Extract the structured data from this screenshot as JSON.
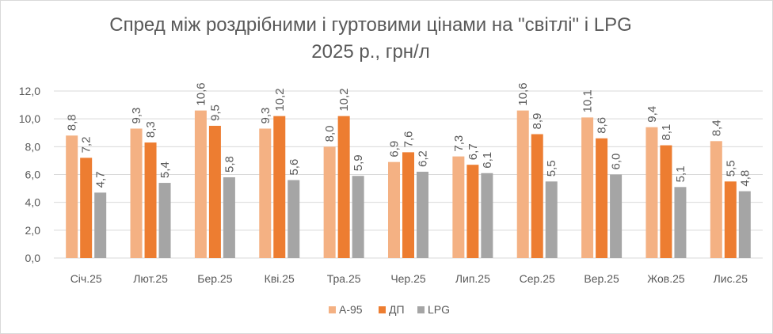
{
  "chart_data": {
    "type": "bar",
    "title_line1": "Спред між роздрібними і гуртовими цінами на \"світлі\" і LPG",
    "title_line2": "2025 р., грн/л",
    "categories": [
      "Січ.25",
      "Лют.25",
      "Бер.25",
      "Кві.25",
      "Тра.25",
      "Чер.25",
      "Лип.25",
      "Сер.25",
      "Вер.25",
      "Жов.25",
      "Лис.25"
    ],
    "series": [
      {
        "name": "А-95",
        "color": "#f4b183",
        "values": [
          8.8,
          9.3,
          10.6,
          9.3,
          8.0,
          6.9,
          7.3,
          10.6,
          10.1,
          9.4,
          8.4
        ]
      },
      {
        "name": "ДП",
        "color": "#ed7d31",
        "values": [
          7.2,
          8.3,
          9.5,
          10.2,
          10.2,
          7.6,
          6.7,
          8.9,
          8.6,
          8.1,
          5.5
        ]
      },
      {
        "name": "LPG",
        "color": "#a5a5a5",
        "values": [
          4.7,
          5.4,
          5.8,
          5.6,
          5.9,
          6.2,
          6.1,
          5.5,
          6.0,
          5.1,
          4.8
        ]
      }
    ],
    "yticks": [
      "0,0",
      "2,0",
      "4,0",
      "6,0",
      "8,0",
      "10,0",
      "12,0"
    ],
    "ylim": [
      0,
      12
    ],
    "grid": true,
    "legend_position": "bottom"
  }
}
